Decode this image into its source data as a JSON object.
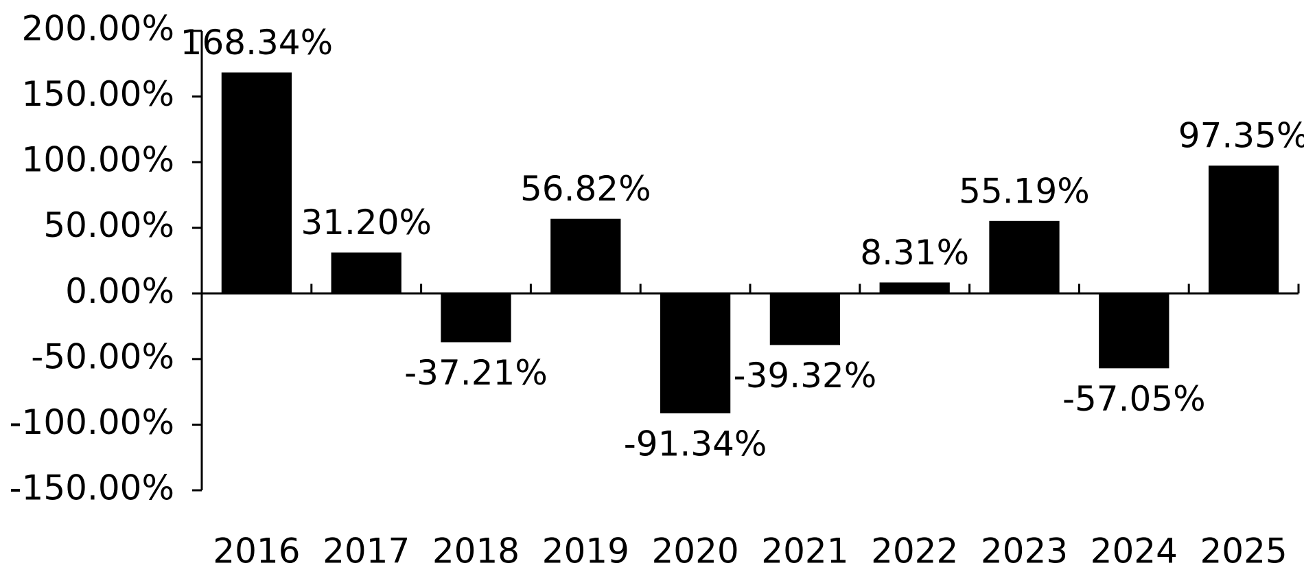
{
  "chart_data": {
    "type": "bar",
    "categories": [
      "2016",
      "2017",
      "2018",
      "2019",
      "2020",
      "2021",
      "2022",
      "2023",
      "2024",
      "2025"
    ],
    "values": [
      168.34,
      31.2,
      -37.21,
      56.82,
      -91.34,
      -39.32,
      8.31,
      55.19,
      -57.05,
      97.35
    ],
    "value_labels": [
      "168.34%",
      "31.20%",
      "-37.21%",
      "56.82%",
      "-91.34%",
      "-39.32%",
      "8.31%",
      "55.19%",
      "-57.05%",
      "97.35%"
    ],
    "color": "#000000",
    "ylim": [
      -150,
      200
    ],
    "yticks": [
      {
        "value": -150,
        "label": "-150.00%"
      },
      {
        "value": -100,
        "label": "-100.00%"
      },
      {
        "value": -50,
        "label": "-50.00%"
      },
      {
        "value": 0,
        "label": "0.00%"
      },
      {
        "value": 50,
        "label": "50.00%"
      },
      {
        "value": 100,
        "label": "100.00%"
      },
      {
        "value": 150,
        "label": "150.00%"
      },
      {
        "value": 200,
        "label": "200.00%"
      }
    ],
    "grid": false
  }
}
